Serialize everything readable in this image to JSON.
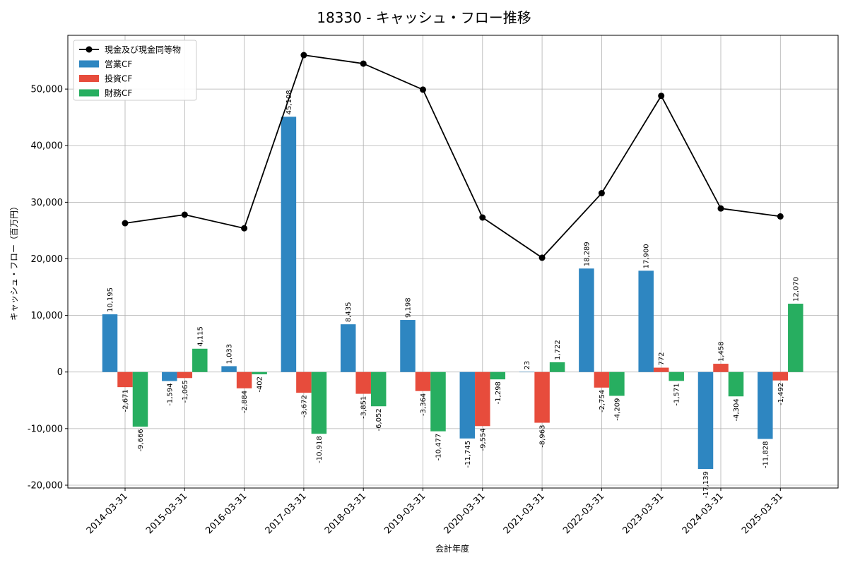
{
  "chart_data": {
    "type": "bar",
    "title": "18330 - キャッシュ・フロー推移",
    "xlabel": "会計年度",
    "ylabel": "キャッシュ・フロー（百万円）",
    "ylim": [
      -20500,
      59500
    ],
    "yticks": [
      -20000,
      -10000,
      0,
      10000,
      20000,
      30000,
      40000,
      50000
    ],
    "ytick_labels": [
      "-20,000",
      "-10,000",
      "0",
      "10,000",
      "20,000",
      "30,000",
      "40,000",
      "50,000"
    ],
    "categories": [
      "2014-03-31",
      "2015-03-31",
      "2016-03-31",
      "2017-03-31",
      "2018-03-31",
      "2019-03-31",
      "2020-03-31",
      "2021-03-31",
      "2022-03-31",
      "2023-03-31",
      "2024-03-31",
      "2025-03-31"
    ],
    "grid": true,
    "legend_position": "top-left",
    "series": [
      {
        "name": "営業CF",
        "kind": "bar",
        "color": "#2e86c1",
        "values": [
          10195,
          -1594,
          1033,
          45108,
          8435,
          9198,
          -11745,
          23,
          18289,
          17900,
          -17139,
          -11828
        ],
        "labels": [
          "10,195",
          "-1,594",
          "1,033",
          "45,108",
          "8,435",
          "9,198",
          "-11,745",
          "23",
          "18,289",
          "17,900",
          "-17,139",
          "-11,828"
        ]
      },
      {
        "name": "投資CF",
        "kind": "bar",
        "color": "#e74c3c",
        "values": [
          -2671,
          -1065,
          -2884,
          -3672,
          -3851,
          -3364,
          -9554,
          -8963,
          -2754,
          772,
          1458,
          -1492
        ],
        "labels": [
          "-2,671",
          "-1,065",
          "-2,884",
          "-3,672",
          "-3,851",
          "-3,364",
          "-9,554",
          "-8,963",
          "-2,754",
          "772",
          "1,458",
          "-1,492"
        ]
      },
      {
        "name": "財務CF",
        "kind": "bar",
        "color": "#27ae60",
        "values": [
          -9666,
          4115,
          -402,
          -10918,
          -6052,
          -10477,
          -1298,
          1722,
          -4209,
          -1571,
          -4304,
          12070
        ],
        "labels": [
          "-9,666",
          "4,115",
          "-402",
          "-10,918",
          "-6,052",
          "-10,477",
          "-1,298",
          "1,722",
          "-4,209",
          "-1,571",
          "-4,304",
          "12,070"
        ]
      },
      {
        "name": "現金及び現金同等物",
        "kind": "line",
        "color": "#000000",
        "values": [
          26300,
          27800,
          25400,
          56000,
          54500,
          49900,
          27300,
          20200,
          31600,
          48800,
          28900,
          27500
        ]
      }
    ]
  }
}
